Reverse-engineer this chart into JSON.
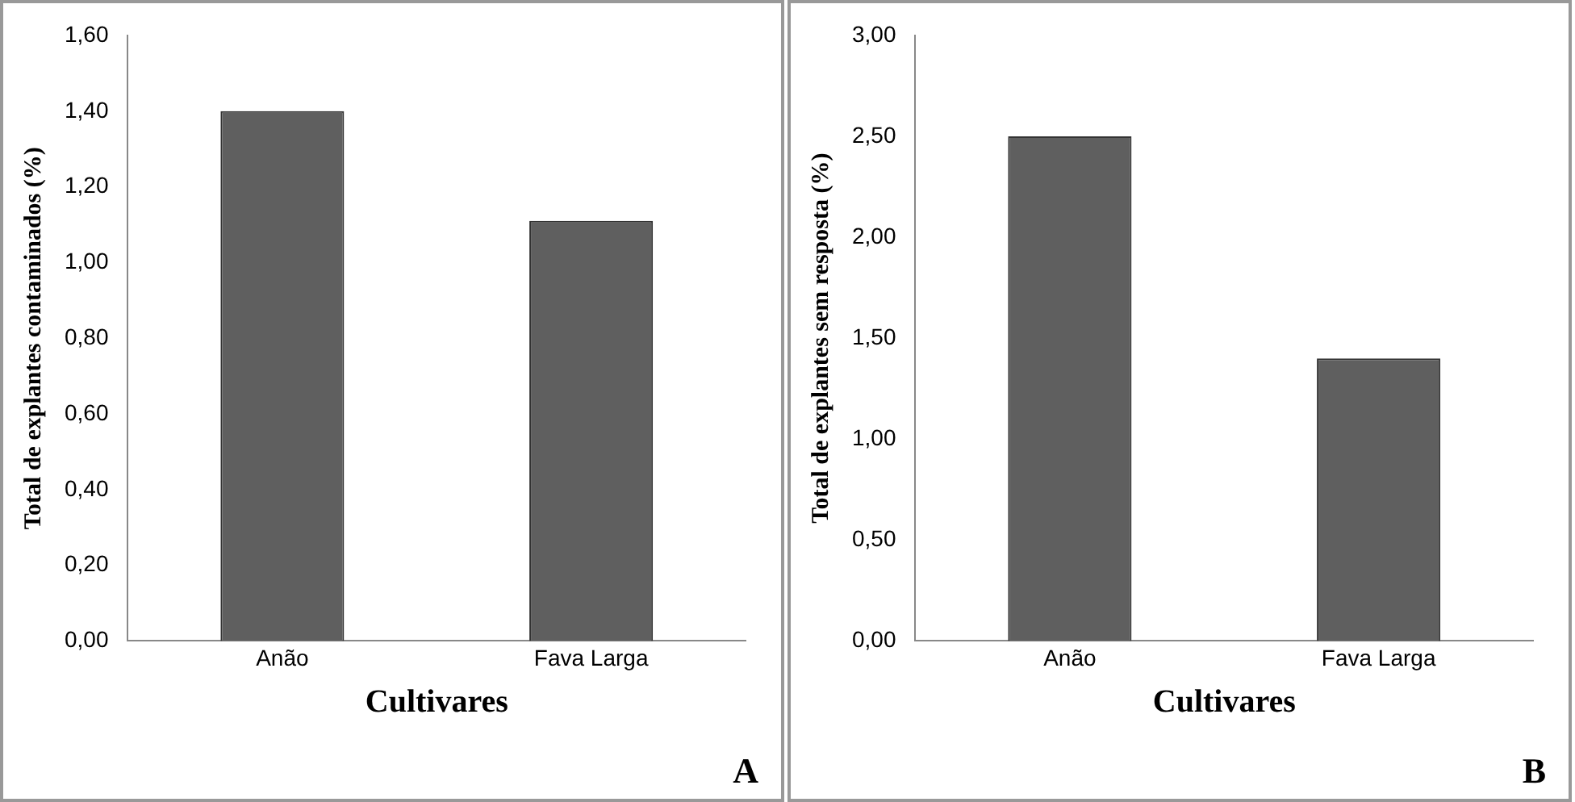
{
  "chart_data": [
    {
      "type": "bar",
      "xlabel": "Cultivares",
      "ylabel": "Total de explantes contaminados (%)",
      "categories": [
        "Anão",
        "Fava Larga"
      ],
      "values": [
        1.4,
        1.11
      ],
      "color": "#5f5f5f",
      "ylim": [
        0,
        1.6
      ],
      "yticks": [
        {
          "value": 0,
          "label": "0,00"
        },
        {
          "value": 0.2,
          "label": "0,20"
        },
        {
          "value": 0.4,
          "label": "0,40"
        },
        {
          "value": 0.6,
          "label": "0,60"
        },
        {
          "value": 0.8,
          "label": "0,80"
        },
        {
          "value": 1.0,
          "label": "1,00"
        },
        {
          "value": 1.2,
          "label": "1,20"
        },
        {
          "value": 1.4,
          "label": "1,40"
        },
        {
          "value": 1.6,
          "label": "1,60"
        }
      ],
      "grid": false,
      "legend": false,
      "annotations": [
        "A"
      ]
    },
    {
      "type": "bar",
      "xlabel": "Cultivares",
      "ylabel": "Total de explantes sem resposta (%)",
      "categories": [
        "Anão",
        "Fava Larga"
      ],
      "values": [
        2.5,
        1.4
      ],
      "color": "#5f5f5f",
      "ylim": [
        0,
        3
      ],
      "yticks": [
        {
          "value": 0,
          "label": "0,00"
        },
        {
          "value": 0.5,
          "label": "0,50"
        },
        {
          "value": 1.0,
          "label": "1,00"
        },
        {
          "value": 1.5,
          "label": "1,50"
        },
        {
          "value": 2.0,
          "label": "2,00"
        },
        {
          "value": 2.5,
          "label": "2,50"
        },
        {
          "value": 3.0,
          "label": "3,00"
        }
      ],
      "grid": false,
      "legend": false,
      "annotations": [
        "B"
      ]
    }
  ]
}
